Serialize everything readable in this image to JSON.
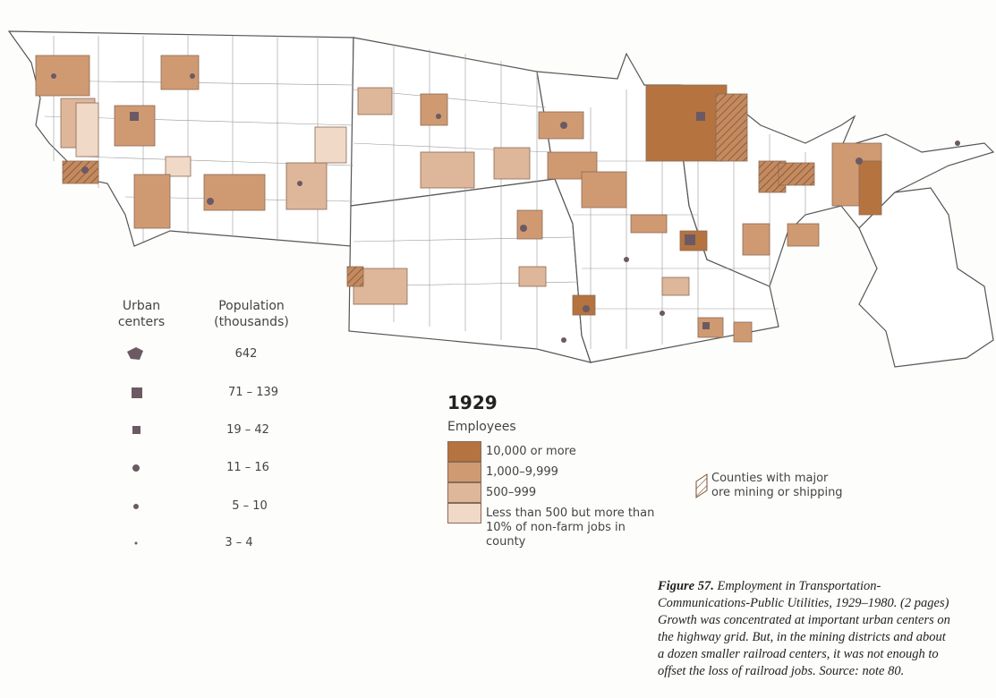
{
  "urban_legend": {
    "symbol_heading": "Urban centers",
    "population_heading": "Population (thousands)",
    "population_classes": [
      "642",
      "71 – 139",
      "19 – 42",
      "11 – 16",
      "5 – 10",
      "3 – 4"
    ]
  },
  "employment_legend": {
    "year": "1929",
    "subtitle": "Employees",
    "classes": [
      "10,000 or more",
      "1,000–9,999",
      "500–999",
      "Less than 500 but more than 10% of non-farm jobs in county"
    ]
  },
  "hatch_legend": {
    "label": "Counties with major ore mining or shipping"
  },
  "caption": {
    "figure": "Figure 57.",
    "text": "Employment in Transportation-Communications-Public Utilities, 1929–1980. (2 pages) Growth was concentrated at important urban centers on the highway grid. But, in the mining districts and about a dozen smaller railroad centers, it was not enough to offset the loss of railroad jobs. Source: note 80."
  }
}
